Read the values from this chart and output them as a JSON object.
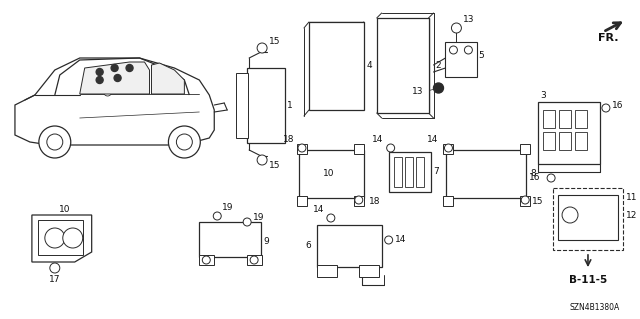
{
  "bg_color": "#ffffff",
  "diagram_code": "SZN4B1380A",
  "ref_label": "B-11-5",
  "line_color": "#2a2a2a",
  "label_color": "#111111"
}
